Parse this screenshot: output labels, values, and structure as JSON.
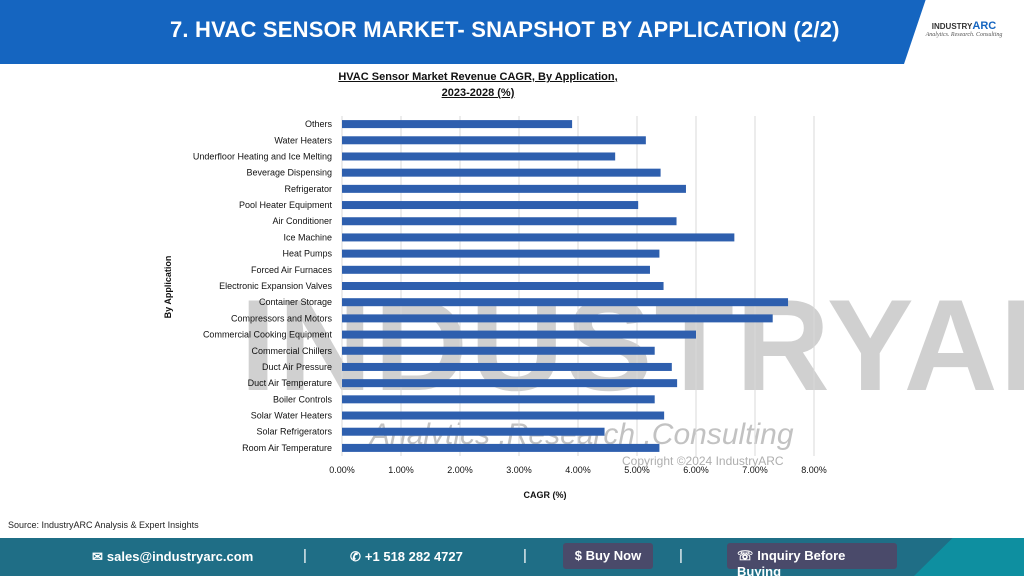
{
  "header": {
    "title": "7. HVAC SENSOR MARKET- SNAPSHOT BY APPLICATION (2/2)",
    "logo_prefix": "INDUSTRY",
    "logo_main": "ARC",
    "logo_sub": "Analytics. Research. Consulting"
  },
  "watermark": {
    "word": "INDUSTRYARC",
    "tagline": "Analytics .Research .Consulting",
    "copyright": "Copyright ©2024 IndustryARC"
  },
  "chart_data": {
    "type": "bar",
    "orientation": "horizontal",
    "title_line1": "HVAC Sensor Market Revenue CAGR, By  Application,",
    "title_line2": "2023-2028 (%)",
    "xlabel": "CAGR (%)",
    "ylabel": "By Application",
    "xlim": [
      0,
      8
    ],
    "xticks": [
      "0.00%",
      "1.00%",
      "2.00%",
      "3.00%",
      "4.00%",
      "5.00%",
      "6.00%",
      "7.00%",
      "8.00%"
    ],
    "grid": true,
    "bar_color": "#2e5fae",
    "categories": [
      "Others",
      "Water Heaters",
      "Underfloor Heating and Ice Melting",
      "Beverage Dispensing",
      "Refrigerator",
      "Pool Heater Equipment",
      "Air Conditioner",
      "Ice Machine",
      "Heat Pumps",
      "Forced Air Furnaces",
      "Electronic Expansion Valves",
      "Container Storage",
      "Compressors and Motors",
      "Commercial Cooking Equipment",
      "Commercial Chillers",
      "Duct Air Pressure",
      "Duct Air Temperature",
      "Boiler Controls",
      "Solar Water Heaters",
      "Solar Refrigerators",
      "Room Air Temperature"
    ],
    "values": [
      3.9,
      5.15,
      4.63,
      5.4,
      5.83,
      5.02,
      5.67,
      6.65,
      5.38,
      5.22,
      5.45,
      7.56,
      7.3,
      6.0,
      5.3,
      5.59,
      5.68,
      5.3,
      5.46,
      4.45,
      5.38
    ]
  },
  "source": "Source: IndustryARC Analysis & Expert Insights",
  "footer": {
    "email": "sales@industryarc.com",
    "phone": "+1 518 282 4727",
    "buy_label": "$ Buy Now",
    "inquiry_label": "Inquiry Before Buying",
    "separator": "|"
  },
  "colors": {
    "header_blue": "#1565c0",
    "footer": "#1f6e86",
    "button": "#4a4a6a"
  }
}
